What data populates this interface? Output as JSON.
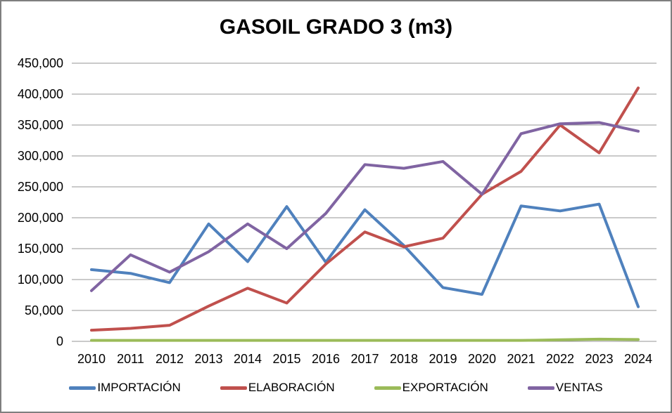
{
  "chart_data": {
    "type": "line",
    "title": "GASOIL GRADO 3 (m3)",
    "categories": [
      "2010",
      "2011",
      "2012",
      "2013",
      "2014",
      "2015",
      "2016",
      "2017",
      "2018",
      "2019",
      "2020",
      "2021",
      "2022",
      "2023",
      "2024"
    ],
    "series": [
      {
        "name": "IMPORTACIÓN",
        "color": "#4F81BD",
        "values": [
          116000,
          110000,
          95000,
          190000,
          129000,
          218000,
          128000,
          213000,
          155000,
          87000,
          76000,
          219000,
          211000,
          222000,
          56000
        ]
      },
      {
        "name": "ELABORACIÓN",
        "color": "#C0504D",
        "values": [
          18000,
          21000,
          26000,
          57000,
          86000,
          62000,
          125000,
          177000,
          153000,
          167000,
          238000,
          275000,
          350000,
          305000,
          410000
        ]
      },
      {
        "name": "EXPORTACIÓN",
        "color": "#9BBB59",
        "values": [
          1500,
          1500,
          1500,
          1500,
          1500,
          1500,
          1500,
          1500,
          1500,
          1500,
          1500,
          1500,
          2500,
          3500,
          3000
        ]
      },
      {
        "name": "VENTAS",
        "color": "#8064A2",
        "values": [
          82000,
          140000,
          112000,
          145000,
          190000,
          150000,
          207000,
          286000,
          280000,
          291000,
          238000,
          336000,
          352000,
          354000,
          340000
        ]
      }
    ],
    "ylim": [
      0,
      450000
    ],
    "ytick_step": 50000,
    "ytick_labels": [
      "0",
      "50,000",
      "100,000",
      "150,000",
      "200,000",
      "250,000",
      "300,000",
      "350,000",
      "400,000",
      "450,000"
    ],
    "grid": true,
    "legend_position": "bottom",
    "gridline_color": "#959595",
    "text_color": "#000000"
  }
}
